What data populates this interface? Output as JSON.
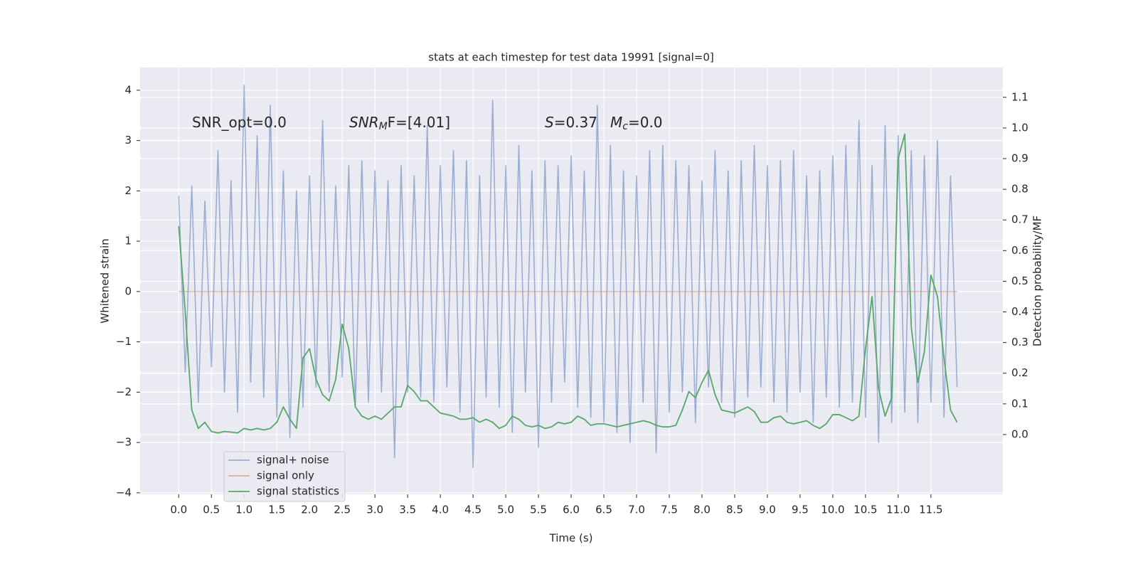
{
  "chart_data": {
    "type": "line",
    "title": "stats at each timestep for test data 19991 [signal=0]",
    "xlabel": "Time (s)",
    "ylabel": "Whitened strain",
    "y2label": "Detection probability/MF",
    "annotations": [
      {
        "text": "SNR_opt=0.0"
      },
      {
        "base": "SNR",
        "sub": "M",
        "rest": "F=[4.01]"
      },
      {
        "base": "S",
        "rest": "=0.37"
      },
      {
        "base": "M",
        "sub": "c",
        "rest": "=0.0"
      }
    ],
    "x": [
      0,
      0.1,
      0.2,
      0.3,
      0.4,
      0.5,
      0.6,
      0.7,
      0.8,
      0.9,
      1.0,
      1.1,
      1.2,
      1.3,
      1.4,
      1.5,
      1.6,
      1.7,
      1.8,
      1.9,
      2.0,
      2.1,
      2.2,
      2.3,
      2.4,
      2.5,
      2.6,
      2.7,
      2.8,
      2.9,
      3.0,
      3.1,
      3.2,
      3.3,
      3.4,
      3.5,
      3.6,
      3.7,
      3.8,
      3.9,
      4.0,
      4.1,
      4.2,
      4.3,
      4.4,
      4.5,
      4.6,
      4.7,
      4.8,
      4.9,
      5.0,
      5.1,
      5.2,
      5.3,
      5.4,
      5.5,
      5.6,
      5.7,
      5.8,
      5.9,
      6.0,
      6.1,
      6.2,
      6.3,
      6.4,
      6.5,
      6.6,
      6.7,
      6.8,
      6.9,
      7.0,
      7.1,
      7.2,
      7.3,
      7.4,
      7.5,
      7.6,
      7.7,
      7.8,
      7.9,
      8.0,
      8.1,
      8.2,
      8.3,
      8.4,
      8.5,
      8.6,
      8.7,
      8.8,
      8.9,
      9.0,
      9.1,
      9.2,
      9.3,
      9.4,
      9.5,
      9.6,
      9.7,
      9.8,
      9.9,
      10.0,
      10.1,
      10.2,
      10.3,
      10.4,
      10.5,
      10.6,
      10.7,
      10.8,
      10.9,
      11.0,
      11.1,
      11.2,
      11.3,
      11.4,
      11.5,
      11.6,
      11.7,
      11.8,
      11.9
    ],
    "series": [
      {
        "name": "signal+ noise",
        "color": "#4c72b0",
        "values": [
          1.9,
          -1.6,
          2.1,
          -2.2,
          1.8,
          -1.5,
          2.8,
          -2.0,
          2.2,
          -2.4,
          4.1,
          -1.8,
          3.1,
          -2.1,
          3.7,
          -2.5,
          2.4,
          -2.9,
          2.0,
          -2.3,
          2.3,
          -1.9,
          3.4,
          -2.0,
          2.1,
          -1.7,
          2.5,
          -2.3,
          2.6,
          -2.2,
          2.4,
          -2.0,
          2.2,
          -3.3,
          2.5,
          -2.0,
          2.3,
          -2.1,
          3.3,
          -2.2,
          2.5,
          -1.9,
          2.8,
          -2.4,
          2.6,
          -3.5,
          2.3,
          -2.1,
          3.8,
          -2.3,
          2.5,
          -2.8,
          2.9,
          -2.0,
          2.4,
          -3.1,
          2.6,
          -2.2,
          2.5,
          -1.8,
          2.7,
          -2.3,
          2.4,
          -2.5,
          3.7,
          -2.6,
          2.9,
          -2.8,
          2.4,
          -3.0,
          2.3,
          -2.2,
          2.8,
          -3.2,
          2.9,
          -2.4,
          2.6,
          -2.0,
          2.5,
          -2.6,
          2.2,
          -1.9,
          2.8,
          -2.2,
          2.4,
          -2.5,
          2.6,
          -2.1,
          2.9,
          -1.9,
          2.5,
          -2.2,
          2.6,
          -2.4,
          2.8,
          -2.0,
          2.3,
          -2.6,
          2.4,
          -2.1,
          2.7,
          -2.3,
          2.9,
          -2.2,
          3.4,
          -2.5,
          2.5,
          -3.0,
          3.3,
          -2.6,
          3.1,
          -2.4,
          2.8,
          -2.6,
          2.7,
          -2.2,
          3.0,
          -2.5,
          2.3,
          -1.9
        ]
      },
      {
        "name": "signal only",
        "color": "#dd8452",
        "values": [
          0,
          0,
          0,
          0,
          0,
          0,
          0,
          0,
          0,
          0,
          0,
          0,
          0,
          0,
          0,
          0,
          0,
          0,
          0,
          0,
          0,
          0,
          0,
          0,
          0,
          0,
          0,
          0,
          0,
          0,
          0,
          0,
          0,
          0,
          0,
          0,
          0,
          0,
          0,
          0,
          0,
          0,
          0,
          0,
          0,
          0,
          0,
          0,
          0,
          0,
          0,
          0,
          0,
          0,
          0,
          0,
          0,
          0,
          0,
          0,
          0,
          0,
          0,
          0,
          0,
          0,
          0,
          0,
          0,
          0,
          0,
          0,
          0,
          0,
          0,
          0,
          0,
          0,
          0,
          0,
          0,
          0,
          0,
          0,
          0,
          0,
          0,
          0,
          0,
          0,
          0,
          0,
          0,
          0,
          0,
          0,
          0,
          0,
          0,
          0,
          0,
          0,
          0,
          0,
          0,
          0,
          0,
          0,
          0,
          0,
          0,
          0,
          0,
          0,
          0,
          0,
          0,
          0,
          0,
          0
        ]
      },
      {
        "name": "signal statistics",
        "color": "#55a868",
        "axis": "y2",
        "values": [
          0.68,
          0.4,
          0.08,
          0.02,
          0.04,
          0.01,
          0.005,
          0.01,
          0.008,
          0.005,
          0.02,
          0.015,
          0.02,
          0.015,
          0.02,
          0.04,
          0.09,
          0.05,
          0.02,
          0.25,
          0.28,
          0.18,
          0.13,
          0.11,
          0.18,
          0.36,
          0.28,
          0.09,
          0.06,
          0.05,
          0.06,
          0.05,
          0.07,
          0.09,
          0.09,
          0.16,
          0.14,
          0.11,
          0.11,
          0.09,
          0.07,
          0.065,
          0.06,
          0.05,
          0.05,
          0.055,
          0.04,
          0.05,
          0.04,
          0.02,
          0.03,
          0.06,
          0.05,
          0.03,
          0.025,
          0.03,
          0.02,
          0.025,
          0.04,
          0.035,
          0.04,
          0.06,
          0.05,
          0.03,
          0.035,
          0.035,
          0.03,
          0.025,
          0.03,
          0.035,
          0.04,
          0.045,
          0.04,
          0.03,
          0.025,
          0.025,
          0.03,
          0.08,
          0.14,
          0.12,
          0.17,
          0.21,
          0.13,
          0.08,
          0.075,
          0.07,
          0.08,
          0.09,
          0.075,
          0.04,
          0.04,
          0.055,
          0.06,
          0.04,
          0.035,
          0.04,
          0.045,
          0.03,
          0.02,
          0.035,
          0.065,
          0.065,
          0.055,
          0.045,
          0.06,
          0.28,
          0.45,
          0.15,
          0.06,
          0.12,
          0.9,
          0.98,
          0.35,
          0.17,
          0.27,
          0.52,
          0.45,
          0.25,
          0.08,
          0.04
        ]
      }
    ],
    "xlim": [
      -0.59,
      12.6
    ],
    "xticks": [
      {
        "value": 0,
        "label": "0.0"
      },
      {
        "value": 0.5,
        "label": "0.5"
      },
      {
        "value": 1,
        "label": "1.0"
      },
      {
        "value": 1.5,
        "label": "1.5"
      },
      {
        "value": 2,
        "label": "2.0"
      },
      {
        "value": 2.5,
        "label": "2.5"
      },
      {
        "value": 3,
        "label": "3.0"
      },
      {
        "value": 3.5,
        "label": "3.5"
      },
      {
        "value": 4,
        "label": "4.0"
      },
      {
        "value": 4.5,
        "label": "4.5"
      },
      {
        "value": 5,
        "label": "5.0"
      },
      {
        "value": 5.5,
        "label": "5.5"
      },
      {
        "value": 6,
        "label": "6.0"
      },
      {
        "value": 6.5,
        "label": "6.5"
      },
      {
        "value": 7,
        "label": "7.0"
      },
      {
        "value": 7.5,
        "label": "7.5"
      },
      {
        "value": 8,
        "label": "8.0"
      },
      {
        "value": 8.5,
        "label": "8.5"
      },
      {
        "value": 9,
        "label": "9.0"
      },
      {
        "value": 9.5,
        "label": "9.5"
      },
      {
        "value": 10,
        "label": "10.0"
      },
      {
        "value": 10.5,
        "label": "10.5"
      },
      {
        "value": 11,
        "label": "11.0"
      },
      {
        "value": 11.5,
        "label": "11.5"
      }
    ],
    "ylim": [
      -4.03,
      4.45
    ],
    "yticks": [
      {
        "value": -4,
        "label": "−4"
      },
      {
        "value": -3,
        "label": "−3"
      },
      {
        "value": -2,
        "label": "−2"
      },
      {
        "value": -1,
        "label": "−1"
      },
      0,
      1,
      2,
      3,
      4
    ],
    "y2lim": [
      -0.195,
      1.197
    ],
    "y2ticks": [
      {
        "value": 0,
        "label": "0.0"
      },
      {
        "value": 0.1,
        "label": "0.1"
      },
      {
        "value": 0.2,
        "label": "0.2"
      },
      {
        "value": 0.3,
        "label": "0.3"
      },
      {
        "value": 0.4,
        "label": "0.4"
      },
      {
        "value": 0.5,
        "label": "0.5"
      },
      {
        "value": 0.6,
        "label": "0.6"
      },
      {
        "value": 0.7,
        "label": "0.7"
      },
      {
        "value": 0.8,
        "label": "0.8"
      },
      {
        "value": 0.9,
        "label": "0.9"
      },
      {
        "value": 1,
        "label": "1.0"
      },
      {
        "value": 1.1,
        "label": "1.1"
      }
    ],
    "grid": true,
    "legend": "lower left"
  }
}
